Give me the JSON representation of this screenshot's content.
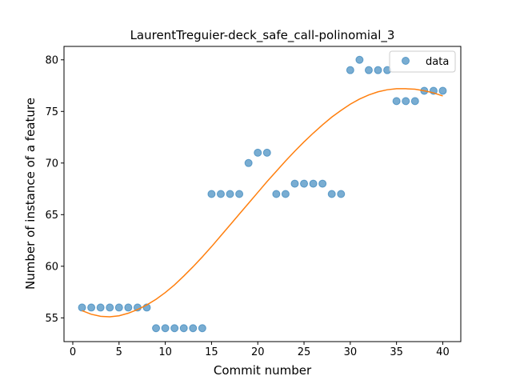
{
  "chart_data": {
    "type": "scatter",
    "title": "LaurentTreguier-deck_safe_call-polinomial_3",
    "xlabel": "Commit number",
    "ylabel": "Number of instance of a feature",
    "xlim": [
      -0.95,
      41.95
    ],
    "ylim": [
      52.7,
      81.3
    ],
    "xticks": [
      0,
      5,
      10,
      15,
      20,
      25,
      30,
      35,
      40
    ],
    "yticks": [
      55,
      60,
      65,
      70,
      75,
      80
    ],
    "grid": false,
    "legend_position": "top-right",
    "series": [
      {
        "name": "data",
        "kind": "scatter",
        "color": "#1f77b4",
        "x": [
          1,
          2,
          3,
          4,
          5,
          6,
          7,
          8,
          9,
          10,
          11,
          12,
          13,
          14,
          15,
          16,
          17,
          18,
          19,
          20,
          21,
          22,
          23,
          24,
          25,
          26,
          27,
          28,
          29,
          30,
          31,
          32,
          33,
          34,
          35,
          36,
          37,
          38,
          39,
          40
        ],
        "y": [
          56,
          56,
          56,
          56,
          56,
          56,
          56,
          56,
          54,
          54,
          54,
          54,
          54,
          54,
          67,
          67,
          67,
          67,
          70,
          71,
          71,
          67,
          67,
          68,
          68,
          68,
          68,
          67,
          67,
          79,
          80,
          79,
          79,
          79,
          76,
          76,
          76,
          77,
          77,
          77
        ]
      },
      {
        "kind": "line",
        "color": "#ff7f0e",
        "x": [
          1,
          2,
          3,
          4,
          5,
          6,
          7,
          8,
          9,
          10,
          11,
          12,
          13,
          14,
          15,
          16,
          17,
          18,
          19,
          20,
          21,
          22,
          23,
          24,
          25,
          26,
          27,
          28,
          29,
          30,
          31,
          32,
          33,
          34,
          35,
          36,
          37,
          38,
          39,
          40
        ],
        "y": [
          55.7,
          55.35,
          55.15,
          55.1,
          55.2,
          55.45,
          55.8,
          56.25,
          56.8,
          57.45,
          58.2,
          59.05,
          59.95,
          60.9,
          61.9,
          62.95,
          64.0,
          65.05,
          66.1,
          67.15,
          68.2,
          69.2,
          70.2,
          71.15,
          72.05,
          72.9,
          73.7,
          74.45,
          75.1,
          75.7,
          76.2,
          76.6,
          76.9,
          77.1,
          77.2,
          77.2,
          77.15,
          77.0,
          76.8,
          76.5
        ]
      }
    ]
  }
}
